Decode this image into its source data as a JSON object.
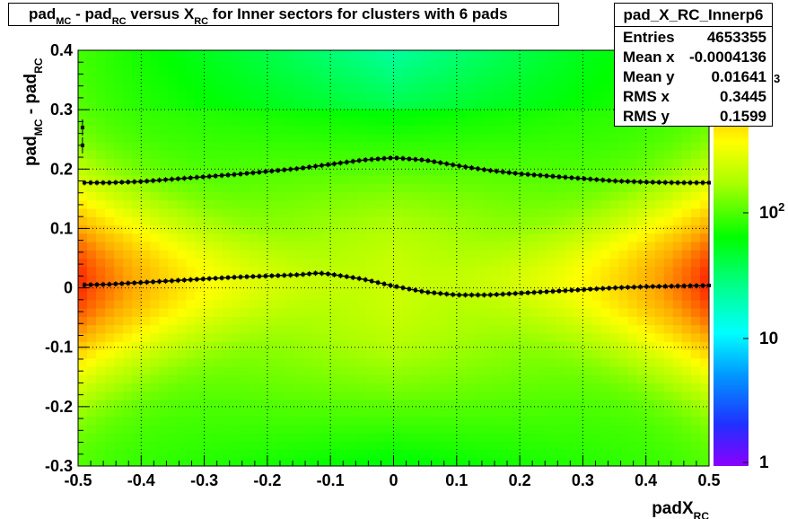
{
  "chart_data": {
    "type": "heatmap",
    "title_parts": {
      "a": "pad",
      "a_sub": "MC",
      "b": " - pad",
      "b_sub": "RC",
      "c": " versus X",
      "c_sub": "RC",
      "d": " for Inner sectors for clusters with 6 pads"
    },
    "xlabel": "padX",
    "xlabel_sub": "RC",
    "ylabel_parts": {
      "a": "pad",
      "a_sub": "MC",
      "b": " - pad",
      "b_sub": "RC"
    },
    "xlim": [
      -0.5,
      0.5
    ],
    "ylim": [
      -0.3,
      0.4
    ],
    "x_ticks": [
      "-0.5",
      "-0.4",
      "-0.3",
      "-0.2",
      "-0.1",
      "0",
      "0.1",
      "0.2",
      "0.3",
      "0.4",
      "0.5"
    ],
    "y_ticks": [
      "-0.3",
      "-0.2",
      "-0.1",
      "0",
      "0.1",
      "0.2",
      "0.3",
      "0.4"
    ],
    "z_scale": "log",
    "palette_labels": [
      {
        "base": "1",
        "exp": ""
      },
      {
        "base": "10",
        "exp": ""
      },
      {
        "base": "10",
        "exp": "2"
      },
      {
        "base": "",
        "exp": "3"
      }
    ],
    "grid": true,
    "stats": {
      "name": "pad_X_RC_Innerp6",
      "rows": [
        {
          "label": "Entries",
          "value": "4653355"
        },
        {
          "label": "Mean x",
          "value": "-0.0004136"
        },
        {
          "label": "Mean y",
          "value": "0.01641"
        },
        {
          "label": "RMS x",
          "value": "0.3445"
        },
        {
          "label": "RMS y",
          "value": "0.1599"
        }
      ]
    },
    "profile_mean": {
      "x": [
        -0.49,
        -0.45,
        -0.4,
        -0.35,
        -0.3,
        -0.25,
        -0.2,
        -0.15,
        -0.12,
        -0.1,
        -0.05,
        0,
        0.05,
        0.1,
        0.15,
        0.2,
        0.25,
        0.3,
        0.35,
        0.4,
        0.45,
        0.5
      ],
      "y": [
        0.005,
        0.006,
        0.009,
        0.012,
        0.015,
        0.018,
        0.02,
        0.022,
        0.025,
        0.023,
        0.015,
        0.003,
        -0.007,
        -0.012,
        -0.012,
        -0.009,
        -0.006,
        -0.003,
        0.0,
        0.002,
        0.003,
        0.004
      ]
    },
    "profile_rms": {
      "x": [
        -0.49,
        -0.45,
        -0.4,
        -0.35,
        -0.3,
        -0.25,
        -0.2,
        -0.15,
        -0.1,
        -0.05,
        0,
        0.05,
        0.1,
        0.15,
        0.2,
        0.25,
        0.3,
        0.35,
        0.4,
        0.45,
        0.5
      ],
      "y": [
        0.177,
        0.177,
        0.179,
        0.183,
        0.187,
        0.191,
        0.196,
        0.201,
        0.208,
        0.215,
        0.219,
        0.215,
        0.206,
        0.198,
        0.192,
        0.188,
        0.184,
        0.18,
        0.178,
        0.177,
        0.177
      ]
    },
    "edge_points": {
      "x": [
        -0.493,
        -0.493
      ],
      "y": [
        0.27,
        0.24
      ]
    }
  }
}
